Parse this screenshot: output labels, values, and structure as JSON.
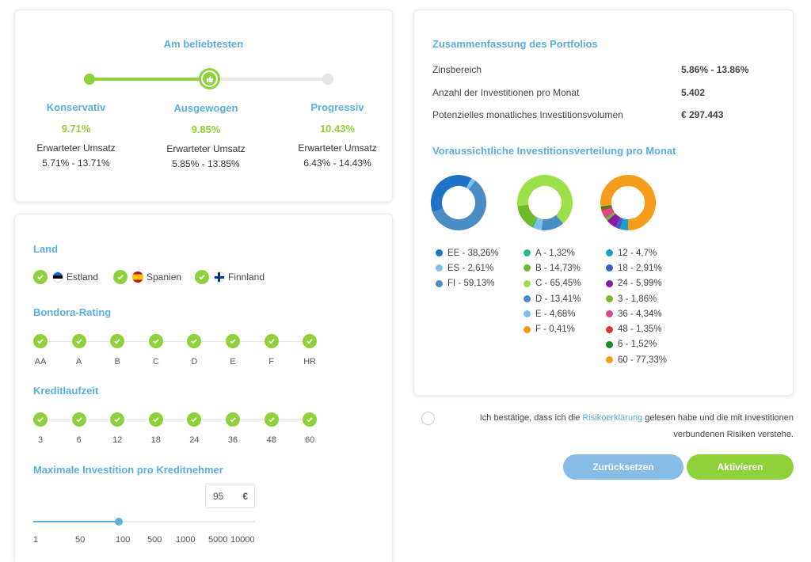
{
  "strategy": {
    "header": "Am beliebtesten",
    "options": [
      {
        "name": "Konservativ",
        "rate": "9.71%",
        "label": "Erwarteter Umsatz",
        "range": "5.71% - 13.71%"
      },
      {
        "name": "Ausgewogen",
        "rate": "9.85%",
        "label": "Erwarteter Umsatz",
        "range": "5.85% - 13.85%"
      },
      {
        "name": "Progressiv",
        "rate": "10.43%",
        "label": "Erwarteter Umsatz",
        "range": "6.43% - 14.43%"
      }
    ],
    "selected_index": 1
  },
  "filters": {
    "country_title": "Land",
    "countries": [
      "Estland",
      "Spanien",
      "Finnland"
    ],
    "rating_title": "Bondora-Rating",
    "ratings": [
      "AA",
      "A",
      "B",
      "C",
      "D",
      "E",
      "F",
      "HR"
    ],
    "term_title": "Kreditlaufzeit",
    "terms": [
      "3",
      "6",
      "12",
      "18",
      "24",
      "36",
      "48",
      "60"
    ],
    "max_invest_title": "Maximale Investition pro Kreditnehmer",
    "max_invest_value": "95",
    "currency_symbol": "€",
    "invest_scale": [
      "1",
      "50",
      "100",
      "500",
      "1000",
      "5000",
      "10000"
    ]
  },
  "summary": {
    "title": "Zusammenfassung des Portfolios",
    "rows": [
      {
        "label": "Zinsbereich",
        "value": "5.86% - 13.86%"
      },
      {
        "label": "Anzahl der Investitionen pro Monat",
        "value": "5.402"
      },
      {
        "label": "Potenzielles monatliches Investitionsvolumen",
        "value": "€ 297.443"
      }
    ],
    "distribution_title": "Voraussichtliche Investitionsverteilung pro Monat",
    "country_legend": [
      {
        "label": "EE - 38,26%",
        "value": 38.26,
        "color": "#1e73c8"
      },
      {
        "label": "ES - 2,61%",
        "value": 2.61,
        "color": "#7cc0ec"
      },
      {
        "label": "FI - 59,13%",
        "value": 59.13,
        "color": "#4a8cc4"
      }
    ],
    "rating_legend": [
      {
        "label": "A - 1,32%",
        "value": 1.32,
        "color": "#2fb98a"
      },
      {
        "label": "B - 14,73%",
        "value": 14.73,
        "color": "#6dbb2a"
      },
      {
        "label": "C - 65,45%",
        "value": 65.45,
        "color": "#9ee04a"
      },
      {
        "label": "D - 13,41%",
        "value": 13.41,
        "color": "#4a8cc4"
      },
      {
        "label": "E - 4,68%",
        "value": 4.68,
        "color": "#7cc0ec"
      },
      {
        "label": "F - 0,41%",
        "value": 0.41,
        "color": "#f59c1a"
      }
    ],
    "term_legend": [
      {
        "label": "12 - 4,7%",
        "value": 4.7,
        "color": "#1aa0c8"
      },
      {
        "label": "18 - 2,91%",
        "value": 2.91,
        "color": "#3c5fc8"
      },
      {
        "label": "24 - 5,99%",
        "value": 5.99,
        "color": "#8a1aa8"
      },
      {
        "label": "3 - 1,86%",
        "value": 1.86,
        "color": "#7ab82a"
      },
      {
        "label": "36 - 4,34%",
        "value": 4.34,
        "color": "#d64a8c"
      },
      {
        "label": "48 - 1,35%",
        "value": 1.35,
        "color": "#d43a2a"
      },
      {
        "label": "6 - 1,52%",
        "value": 1.52,
        "color": "#1e8a2a"
      },
      {
        "label": "60 - 77,33%",
        "value": 77.33,
        "color": "#f59c1a"
      }
    ]
  },
  "confirm": {
    "text_before": "Ich bestätige, dass ich die ",
    "link": "Risikoerklärung",
    "text_after": " gelesen habe und die mit Investitionen verbundenen Risiken verstehe."
  },
  "buttons": {
    "reset": "Zurücksetzen",
    "activate": "Aktivieren"
  },
  "colors": {
    "accent_blue": "#5aaee0",
    "accent_green": "#8fd13a"
  }
}
